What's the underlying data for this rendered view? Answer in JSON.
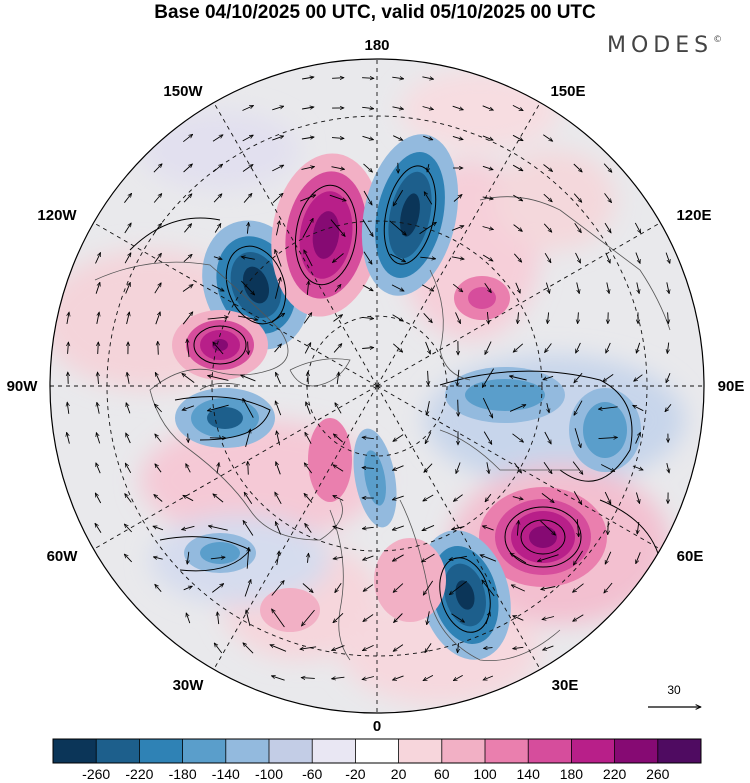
{
  "title": "Base 04/10/2025 00 UTC, valid 05/10/2025 00 UTC",
  "brand": "MODES",
  "brand_mark": "©",
  "map": {
    "projection": "north-polar-stereographic",
    "field_description": "geopotential height deviation with wind vectors",
    "longitude_labels": {
      "top": "180",
      "bottom": "0",
      "left": "90W",
      "right": "90E",
      "upper_left_outer": "150W",
      "upper_left_inner": "120W",
      "upper_right_outer": "150E",
      "upper_right_inner": "120E",
      "lower_left_inner": "60W",
      "lower_left_outer": "30W",
      "lower_right_inner": "60E",
      "lower_right_outer": "30E"
    }
  },
  "vector_reference": {
    "value": "30"
  },
  "colorbar": {
    "ticks": [
      "-260",
      "-220",
      "-180",
      "-140",
      "-100",
      "-60",
      "-20",
      "20",
      "60",
      "100",
      "140",
      "180",
      "220",
      "260"
    ],
    "colors": [
      "#0b3558",
      "#1d5f8c",
      "#2f82b5",
      "#5a9ecb",
      "#93bade",
      "#c3cde6",
      "#e9e7f3",
      "#ffffff",
      "#f7d6dc",
      "#f2b0c5",
      "#ea7fae",
      "#d64d9c",
      "#b81f89",
      "#860a73",
      "#4f0b61"
    ]
  }
}
